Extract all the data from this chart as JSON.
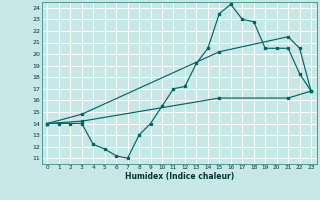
{
  "xlabel": "Humidex (Indice chaleur)",
  "bg_color": "#c8e8e8",
  "line_color": "#006666",
  "grid_color": "#b0d8d8",
  "xlim": [
    -0.5,
    23.5
  ],
  "ylim": [
    10.5,
    24.5
  ],
  "xticks": [
    0,
    1,
    2,
    3,
    4,
    5,
    6,
    7,
    8,
    9,
    10,
    11,
    12,
    13,
    14,
    15,
    16,
    17,
    18,
    19,
    20,
    21,
    22,
    23
  ],
  "yticks": [
    11,
    12,
    13,
    14,
    15,
    16,
    17,
    18,
    19,
    20,
    21,
    22,
    23,
    24
  ],
  "line1_x": [
    0,
    1,
    2,
    3,
    4,
    5,
    6,
    7,
    8,
    9,
    10,
    11,
    12,
    13,
    14,
    15,
    16,
    17,
    18,
    19,
    20,
    21,
    22,
    23
  ],
  "line1_y": [
    14,
    14,
    14,
    14,
    12.2,
    11.8,
    11.2,
    11,
    13,
    14,
    15.5,
    17,
    17.2,
    19.2,
    20.5,
    23.5,
    24.3,
    23,
    22.8,
    20.5,
    20.5,
    20.5,
    18.3,
    16.8
  ],
  "line2_x": [
    0,
    3,
    15,
    21,
    22,
    23
  ],
  "line2_y": [
    14,
    14.8,
    20.2,
    21.5,
    20.5,
    16.8
  ],
  "line3_x": [
    0,
    3,
    15,
    21,
    23
  ],
  "line3_y": [
    14,
    14.2,
    16.2,
    16.2,
    16.8
  ]
}
